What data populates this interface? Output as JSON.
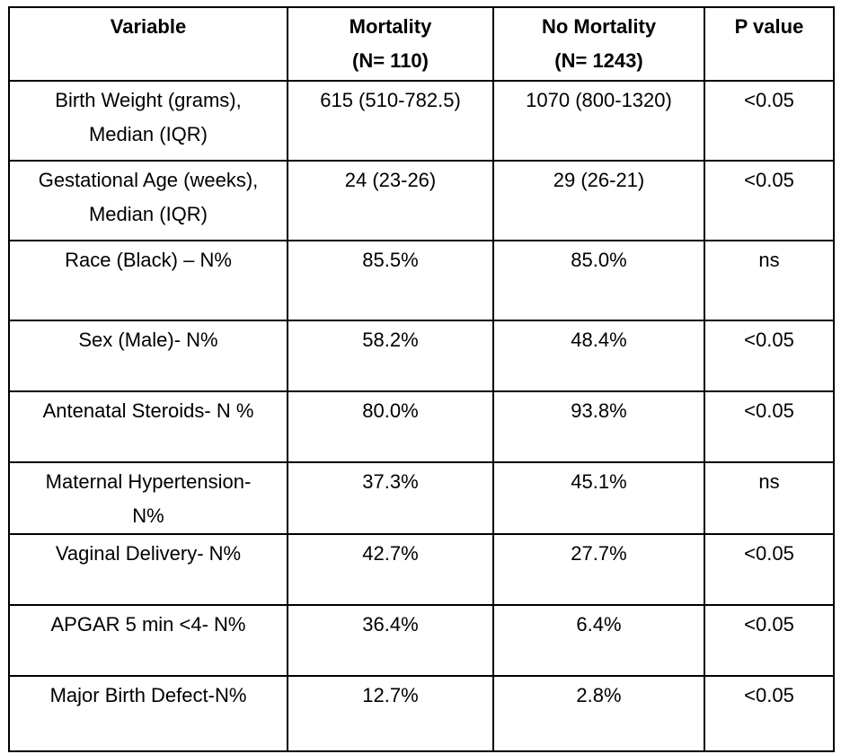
{
  "table": {
    "headers": [
      [
        "Variable"
      ],
      [
        "Mortality",
        "(N= 110)"
      ],
      [
        "No Mortality",
        "(N= 1243)"
      ],
      [
        "P value"
      ]
    ],
    "rows": [
      {
        "variable": [
          "Birth Weight (grams),",
          "Median (IQR)"
        ],
        "mortality": "615 (510-782.5)",
        "no_mortality": "1070 (800-1320)",
        "p_value": "<0.05"
      },
      {
        "variable": [
          "Gestational Age (weeks),",
          "Median (IQR)"
        ],
        "mortality": "24 (23-26)",
        "no_mortality": "29 (26-21)",
        "p_value": "<0.05"
      },
      {
        "variable": [
          "Race (Black) – N%"
        ],
        "mortality": "85.5%",
        "no_mortality": "85.0%",
        "p_value": "ns"
      },
      {
        "variable": [
          "Sex (Male)- N%"
        ],
        "mortality": "58.2%",
        "no_mortality": "48.4%",
        "p_value": "<0.05"
      },
      {
        "variable": [
          "Antenatal Steroids- N %"
        ],
        "mortality": "80.0%",
        "no_mortality": "93.8%",
        "p_value": "<0.05"
      },
      {
        "variable": [
          "Maternal Hypertension-",
          "N%"
        ],
        "mortality": "37.3%",
        "no_mortality": "45.1%",
        "p_value": "ns"
      },
      {
        "variable": [
          "Vaginal Delivery- N%"
        ],
        "mortality": "42.7%",
        "no_mortality": "27.7%",
        "p_value": "<0.05"
      },
      {
        "variable": [
          "APGAR 5 min <4- N%"
        ],
        "mortality": "36.4%",
        "no_mortality": "6.4%",
        "p_value": "<0.05"
      },
      {
        "variable": [
          "Major Birth Defect-N%"
        ],
        "mortality": "12.7%",
        "no_mortality": "2.8%",
        "p_value": "<0.05"
      }
    ]
  }
}
